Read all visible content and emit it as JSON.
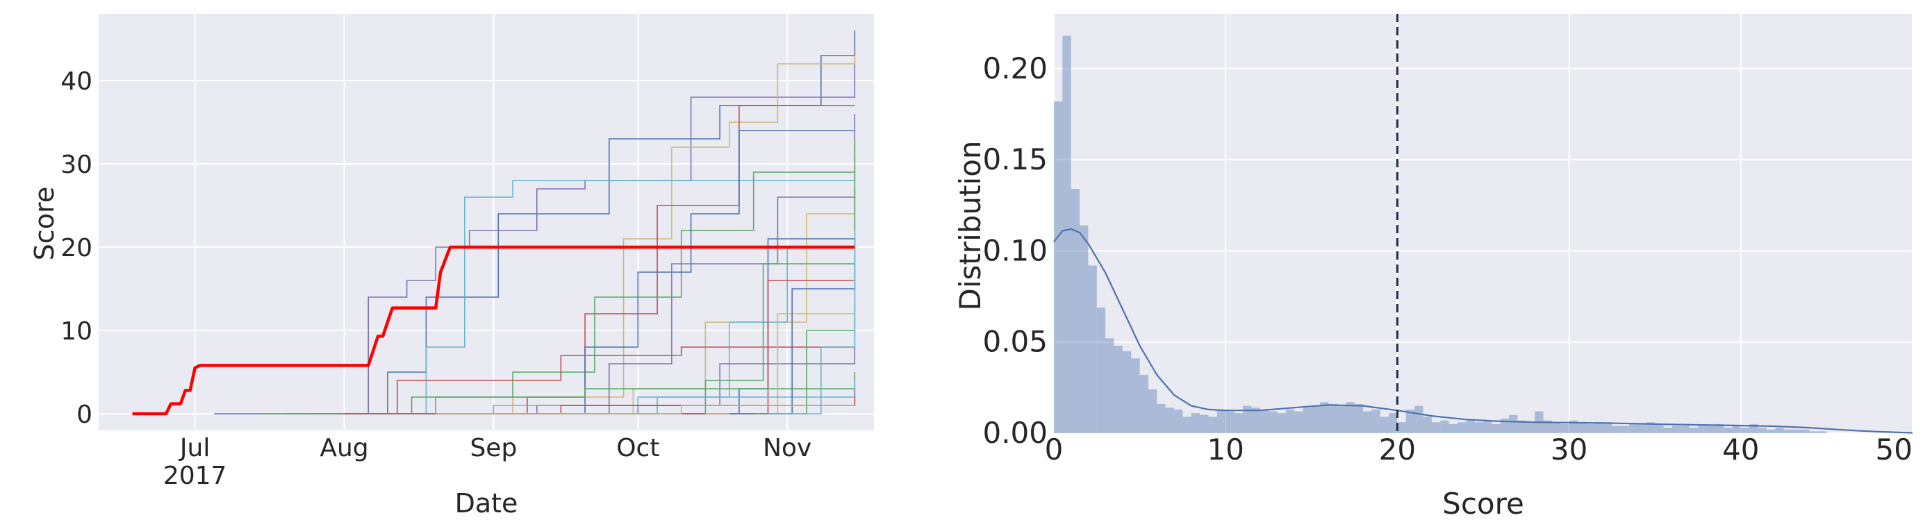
{
  "chart_data": [
    {
      "type": "line",
      "xlabel": "Date",
      "ylabel": "Score",
      "xlim": [
        "2017-06-11",
        "2017-11-19"
      ],
      "ylim": [
        -2,
        48
      ],
      "grid": true,
      "legend": "none",
      "x_ticks": [
        {
          "date": "2017-07-01",
          "label": "Jul",
          "sublabel": "2017"
        },
        {
          "date": "2017-08-01",
          "label": "Aug",
          "sublabel": ""
        },
        {
          "date": "2017-09-01",
          "label": "Sep",
          "sublabel": ""
        },
        {
          "date": "2017-10-01",
          "label": "Oct",
          "sublabel": ""
        },
        {
          "date": "2017-11-01",
          "label": "Nov",
          "sublabel": ""
        }
      ],
      "y_ticks": [
        0,
        10,
        20,
        30,
        40
      ],
      "highlight_series": {
        "color": "#ff0000",
        "x": [
          "2017-06-18",
          "2017-06-25",
          "2017-06-26",
          "2017-06-28",
          "2017-06-29",
          "2017-06-30",
          "2017-07-01",
          "2017-07-02",
          "2017-08-06",
          "2017-08-08",
          "2017-08-09",
          "2017-08-11",
          "2017-08-12",
          "2017-08-20",
          "2017-08-21",
          "2017-08-23",
          "2017-11-15"
        ],
        "y": [
          0,
          0,
          1.2,
          1.2,
          2.8,
          2.8,
          5.5,
          5.8,
          5.8,
          9.3,
          9.3,
          12.7,
          12.7,
          12.7,
          17.0,
          20.0,
          20.0
        ]
      },
      "series": [
        {
          "color": "#4c72b0",
          "x": [
            "2017-07-05",
            "2017-08-08",
            "2017-08-10",
            "2017-08-18",
            "2017-09-02",
            "2017-09-25",
            "2017-10-18",
            "2017-11-08",
            "2017-11-15"
          ],
          "y": [
            0,
            0,
            5,
            14,
            24,
            33,
            37,
            43,
            46
          ]
        },
        {
          "color": "#8172b2",
          "x": [
            "2017-07-20",
            "2017-08-06",
            "2017-08-14",
            "2017-08-20",
            "2017-08-27",
            "2017-09-10",
            "2017-09-20",
            "2017-10-12",
            "2017-11-15"
          ],
          "y": [
            0,
            14,
            16,
            20,
            22,
            27,
            28,
            38,
            44
          ]
        },
        {
          "color": "#ccb974",
          "x": [
            "2017-08-20",
            "2017-09-05",
            "2017-09-28",
            "2017-10-08",
            "2017-10-20",
            "2017-10-30",
            "2017-11-15"
          ],
          "y": [
            0,
            2,
            21,
            32,
            35,
            42,
            43
          ]
        },
        {
          "color": "#64b5cd",
          "x": [
            "2017-08-05",
            "2017-08-18",
            "2017-08-26",
            "2017-09-02",
            "2017-09-05",
            "2017-11-15"
          ],
          "y": [
            0,
            8,
            26,
            26,
            28,
            28
          ]
        },
        {
          "color": "#c44e52",
          "x": [
            "2017-08-25",
            "2017-09-08",
            "2017-09-20",
            "2017-10-05",
            "2017-10-22",
            "2017-11-15"
          ],
          "y": [
            0,
            2,
            12,
            25,
            37,
            37
          ]
        },
        {
          "color": "#55a868",
          "x": [
            "2017-08-10",
            "2017-08-20",
            "2017-09-05",
            "2017-09-22",
            "2017-10-10",
            "2017-10-25",
            "2017-11-15"
          ],
          "y": [
            0,
            2,
            5,
            14,
            22,
            29,
            31
          ]
        },
        {
          "color": "#4c72b0",
          "x": [
            "2017-08-28",
            "2017-09-20",
            "2017-10-01",
            "2017-10-12",
            "2017-10-22",
            "2017-11-15"
          ],
          "y": [
            0,
            8,
            17,
            24,
            34,
            34
          ]
        },
        {
          "color": "#8172b2",
          "x": [
            "2017-09-10",
            "2017-09-25",
            "2017-10-08",
            "2017-10-30",
            "2017-11-15"
          ],
          "y": [
            0,
            6,
            18,
            26,
            36
          ]
        },
        {
          "color": "#ccb974",
          "x": [
            "2017-09-05",
            "2017-09-30",
            "2017-10-15",
            "2017-11-05",
            "2017-11-15"
          ],
          "y": [
            0,
            3,
            11,
            24,
            25
          ]
        },
        {
          "color": "#c44e52",
          "x": [
            "2017-07-25",
            "2017-08-12",
            "2017-09-15",
            "2017-10-10",
            "2017-11-15"
          ],
          "y": [
            0,
            4,
            7,
            8,
            8
          ]
        },
        {
          "color": "#64b5cd",
          "x": [
            "2017-09-15",
            "2017-10-05",
            "2017-10-20",
            "2017-11-01",
            "2017-11-15"
          ],
          "y": [
            0,
            2,
            11,
            20,
            21
          ]
        },
        {
          "color": "#55a868",
          "x": [
            "2017-09-20",
            "2017-10-15",
            "2017-10-27",
            "2017-11-15"
          ],
          "y": [
            0,
            4,
            18,
            19
          ]
        },
        {
          "color": "#4c72b0",
          "x": [
            "2017-10-01",
            "2017-10-22",
            "2017-10-28",
            "2017-11-15"
          ],
          "y": [
            0,
            3,
            21,
            21
          ]
        },
        {
          "color": "#8172b2",
          "x": [
            "2017-08-15",
            "2017-09-10",
            "2017-10-18",
            "2017-11-15"
          ],
          "y": [
            0,
            1,
            6,
            13
          ]
        },
        {
          "color": "#c44e52",
          "x": [
            "2017-10-10",
            "2017-10-28",
            "2017-11-15"
          ],
          "y": [
            0,
            16,
            16
          ]
        },
        {
          "color": "#55a868",
          "x": [
            "2017-07-15",
            "2017-08-15",
            "2017-09-20",
            "2017-11-15"
          ],
          "y": [
            0,
            2,
            3,
            5
          ]
        },
        {
          "color": "#ccb974",
          "x": [
            "2017-10-15",
            "2017-10-30",
            "2017-11-15"
          ],
          "y": [
            0,
            12,
            18
          ]
        },
        {
          "color": "#64b5cd",
          "x": [
            "2017-08-01",
            "2017-09-01",
            "2017-10-01",
            "2017-11-15"
          ],
          "y": [
            0,
            1,
            2,
            4
          ]
        },
        {
          "color": "#4c72b0",
          "x": [
            "2017-10-20",
            "2017-11-02",
            "2017-11-15"
          ],
          "y": [
            0,
            15,
            27
          ]
        },
        {
          "color": "#8172b2",
          "x": [
            "2017-09-01",
            "2017-10-01",
            "2017-11-15"
          ],
          "y": [
            0,
            1,
            3
          ]
        },
        {
          "color": "#c44e52",
          "x": [
            "2017-08-01",
            "2017-09-15",
            "2017-11-15"
          ],
          "y": [
            0,
            1,
            2
          ]
        },
        {
          "color": "#55a868",
          "x": [
            "2017-10-25",
            "2017-11-05",
            "2017-11-15"
          ],
          "y": [
            0,
            10,
            33
          ]
        },
        {
          "color": "#ccb974",
          "x": [
            "2017-08-20",
            "2017-10-10",
            "2017-11-15"
          ],
          "y": [
            0,
            1,
            1
          ]
        },
        {
          "color": "#64b5cd",
          "x": [
            "2017-10-28",
            "2017-11-08",
            "2017-11-15"
          ],
          "y": [
            0,
            8,
            22
          ]
        }
      ]
    },
    {
      "type": "histogram",
      "xlabel": "Score",
      "ylabel": "Distribution",
      "xlim": [
        0,
        50
      ],
      "ylim": [
        0,
        0.23
      ],
      "grid": true,
      "legend": "none",
      "x_ticks": [
        0,
        10,
        20,
        30,
        40,
        50
      ],
      "y_ticks": [
        "0.00",
        "0.05",
        "0.10",
        "0.15",
        "0.20"
      ],
      "bin_width": 0.5,
      "bin_start": 0,
      "bar_color": "#4c72b0",
      "bar_opacity": 0.4,
      "values": [
        0.182,
        0.218,
        0.134,
        0.114,
        0.092,
        0.069,
        0.052,
        0.048,
        0.045,
        0.041,
        0.032,
        0.024,
        0.016,
        0.014,
        0.013,
        0.009,
        0.011,
        0.01,
        0.009,
        0.013,
        0.012,
        0.011,
        0.015,
        0.014,
        0.013,
        0.012,
        0.011,
        0.013,
        0.012,
        0.014,
        0.015,
        0.017,
        0.016,
        0.015,
        0.017,
        0.016,
        0.012,
        0.013,
        0.009,
        0.011,
        0.006,
        0.013,
        0.015,
        0.009,
        0.006,
        0.007,
        0.005,
        0.006,
        0.007,
        0.006,
        0.007,
        0.005,
        0.008,
        0.01,
        0.007,
        0.006,
        0.012,
        0.007,
        0.006,
        0.005,
        0.007,
        0.006,
        0.005,
        0.006,
        0.006,
        0.004,
        0.004,
        0.005,
        0.005,
        0.006,
        0.005,
        0.003,
        0.004,
        0.004,
        0.003,
        0.004,
        0.004,
        0.005,
        0.003,
        0.004,
        0.003,
        0.005,
        0.003,
        0.002,
        0.003,
        0.002,
        0.002,
        0.002,
        0.001,
        0.001
      ],
      "kde": {
        "color": "#4c72b0",
        "x": [
          0,
          0.5,
          1,
          1.5,
          2,
          3,
          4,
          5,
          6,
          7,
          8,
          9,
          10,
          12,
          14,
          16,
          18,
          20,
          22,
          24,
          26,
          28,
          30,
          32,
          34,
          36,
          38,
          40,
          42,
          44,
          46,
          48,
          50
        ],
        "y": [
          0.105,
          0.111,
          0.112,
          0.11,
          0.104,
          0.088,
          0.068,
          0.048,
          0.032,
          0.021,
          0.015,
          0.013,
          0.0125,
          0.0125,
          0.014,
          0.0155,
          0.015,
          0.0125,
          0.0095,
          0.0075,
          0.0065,
          0.006,
          0.0058,
          0.0056,
          0.0052,
          0.0048,
          0.0045,
          0.0042,
          0.0038,
          0.003,
          0.0018,
          0.0008,
          0.0002
        ]
      },
      "reference_line": {
        "x": 20,
        "style": "dashed",
        "color": "#1f2d4a"
      }
    }
  ]
}
